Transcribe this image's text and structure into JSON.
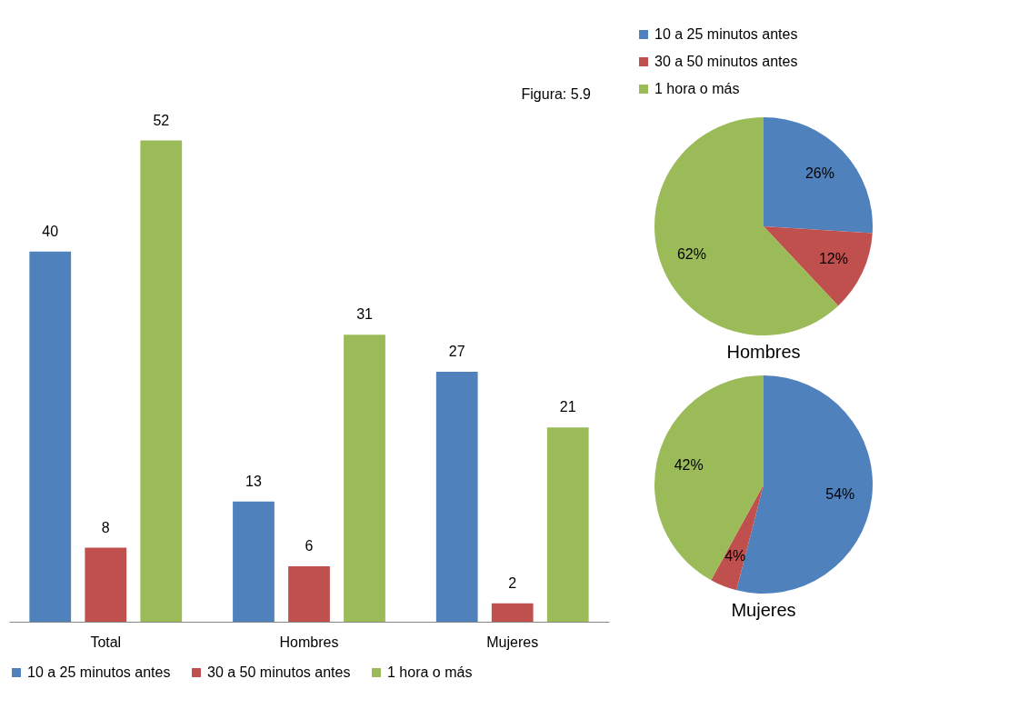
{
  "chart_data": [
    {
      "type": "bar",
      "categories": [
        "Total",
        "Hombres",
        "Mujeres"
      ],
      "series": [
        {
          "name": "10 a 25 minutos antes",
          "color": "#4f81bd",
          "values": [
            40,
            13,
            27
          ]
        },
        {
          "name": "30 a 50 minutos antes",
          "color": "#c0504d",
          "values": [
            8,
            6,
            2
          ]
        },
        {
          "name": "1 hora o más",
          "color": "#9bbb59",
          "values": [
            52,
            31,
            21
          ]
        }
      ],
      "data_labels": true,
      "legend": "bottom",
      "annotations": [
        "Figura: 5.9"
      ]
    },
    {
      "type": "pie",
      "title": "Hombres",
      "categories": [
        "10 a 25 minutos antes",
        "30 a 50 minutos antes",
        "1 hora o más"
      ],
      "values": [
        26,
        12,
        62
      ],
      "colors": [
        "#4f81bd",
        "#c0504d",
        "#9bbb59"
      ],
      "value_labels": [
        "26%",
        "12%",
        "62%"
      ],
      "legend": "top"
    },
    {
      "type": "pie",
      "title": "Mujeres",
      "categories": [
        null,
        null,
        null
      ],
      "values": [
        54,
        4,
        42
      ],
      "colors": [
        "#4f81bd",
        "#c0504d",
        "#9bbb59"
      ],
      "value_labels": [
        "54%",
        "4%",
        "42%"
      ]
    }
  ]
}
